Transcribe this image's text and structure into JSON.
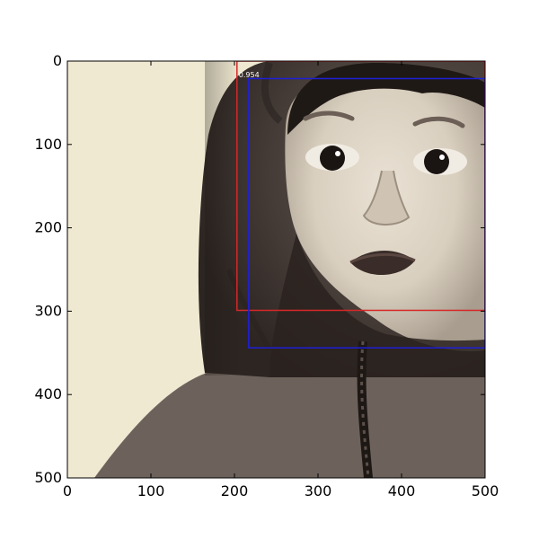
{
  "chart_data": {
    "type": "image-with-detection-boxes",
    "title": "",
    "xlabel": "",
    "ylabel": "",
    "xlim": [
      0,
      500
    ],
    "ylim": [
      500,
      0
    ],
    "x_ticks": [
      0,
      100,
      200,
      300,
      400,
      500
    ],
    "y_ticks": [
      0,
      100,
      200,
      300,
      400,
      500
    ],
    "x_tick_labels": [
      "0",
      "100",
      "200",
      "300",
      "400",
      "500"
    ],
    "y_tick_labels": [
      "0",
      "100",
      "200",
      "300",
      "400",
      "500"
    ],
    "image": {
      "description_name": "child-in-hooded-sweatshirt-photo",
      "extent": [
        0,
        500,
        500,
        0
      ]
    },
    "boxes": [
      {
        "name": "detection-box",
        "x1": 203,
        "y1": 0,
        "x2": 500,
        "y2": 299,
        "color": "#d62728",
        "label": "0.954"
      },
      {
        "name": "ground-truth-box",
        "x1": 217,
        "y1": 21,
        "x2": 500,
        "y2": 344,
        "color": "#1f1fd6",
        "label": ""
      }
    ],
    "grid": false
  }
}
